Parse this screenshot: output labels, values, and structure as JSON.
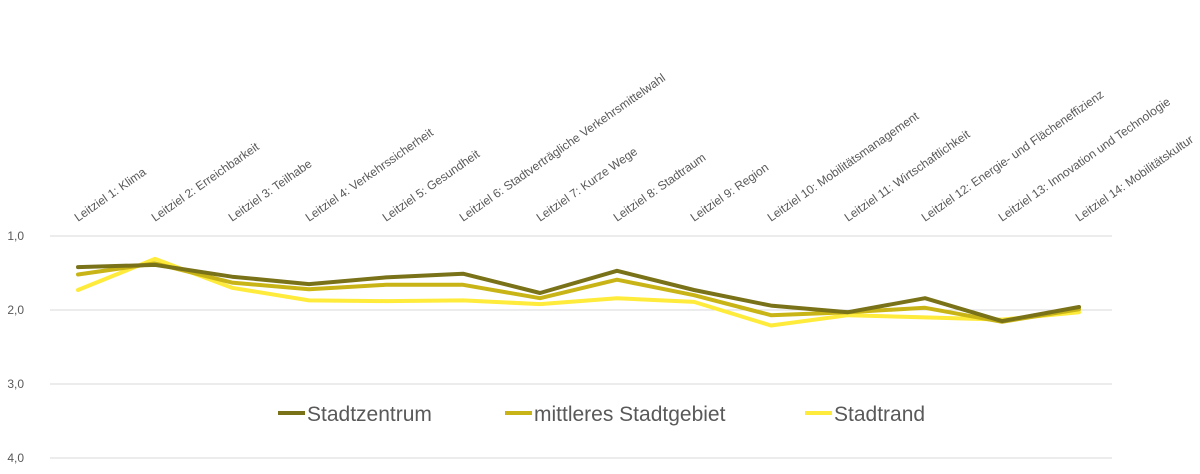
{
  "chart_data": {
    "type": "line",
    "categories": [
      "Leitziel 1: Klima",
      "Leitziel 2: Erreichbarkeit",
      "Leitziel 3: Teilhabe",
      "Leitziel 4: Verkehrssicherheit",
      "Leitziel 5: Gesundheit",
      "Leitziel 6: Stadtverträgliche Verkehrsmittelwahl",
      "Leitziel 7: Kurze Wege",
      "Leitziel 8: Stadtraum",
      "Leitziel 9: Region",
      "Leitziel 10: Mobilitätsmanagement",
      "Leitziel 11: Wirtschaftlichkeit",
      "Leitziel 12: Energie- und Flächeneffizienz",
      "Leitziel 13: Innovation und Technologie",
      "Leitziel 14: Mobilitätskultur"
    ],
    "series": [
      {
        "name": "Stadtzentrum",
        "color": "#7a7218",
        "values": [
          1.42,
          1.39,
          1.55,
          1.65,
          1.56,
          1.51,
          1.77,
          1.47,
          1.73,
          1.94,
          2.03,
          1.84,
          2.15,
          1.96
        ]
      },
      {
        "name": "mittleres Stadtgebiet",
        "color": "#c8b416",
        "values": [
          1.52,
          1.37,
          1.63,
          1.72,
          1.66,
          1.66,
          1.84,
          1.59,
          1.8,
          2.07,
          2.03,
          1.97,
          2.16,
          1.99
        ]
      },
      {
        "name": "Stadtrand",
        "color": "#ffeb3b",
        "values": [
          1.73,
          1.31,
          1.7,
          1.87,
          1.88,
          1.87,
          1.92,
          1.84,
          1.89,
          2.21,
          2.07,
          2.1,
          2.13,
          2.03
        ]
      }
    ],
    "yticks": [
      "1,0",
      "2,0",
      "3,0",
      "4,0"
    ],
    "ylim": [
      1.0,
      4.0
    ],
    "y_inverted": true,
    "grid": true,
    "legend_position": "inside-bottom"
  }
}
